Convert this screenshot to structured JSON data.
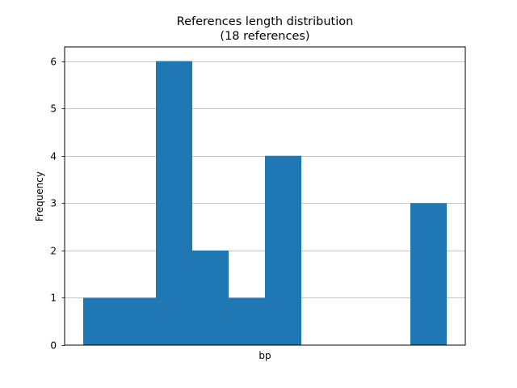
{
  "chart_data": {
    "type": "bar",
    "title": "References length distribution",
    "subtitle": "(18 references)",
    "xlabel": "bp",
    "ylabel": "Frequency",
    "x_ticks": [],
    "y_ticks": [
      "0",
      "1",
      "2",
      "3",
      "4",
      "5",
      "6"
    ],
    "ylim": [
      0,
      6.3
    ],
    "grid": "horizontal",
    "bar_color": "#1f77b4",
    "bins": 10,
    "values": [
      1,
      1,
      6,
      2,
      1,
      4,
      0,
      0,
      0,
      3
    ]
  }
}
